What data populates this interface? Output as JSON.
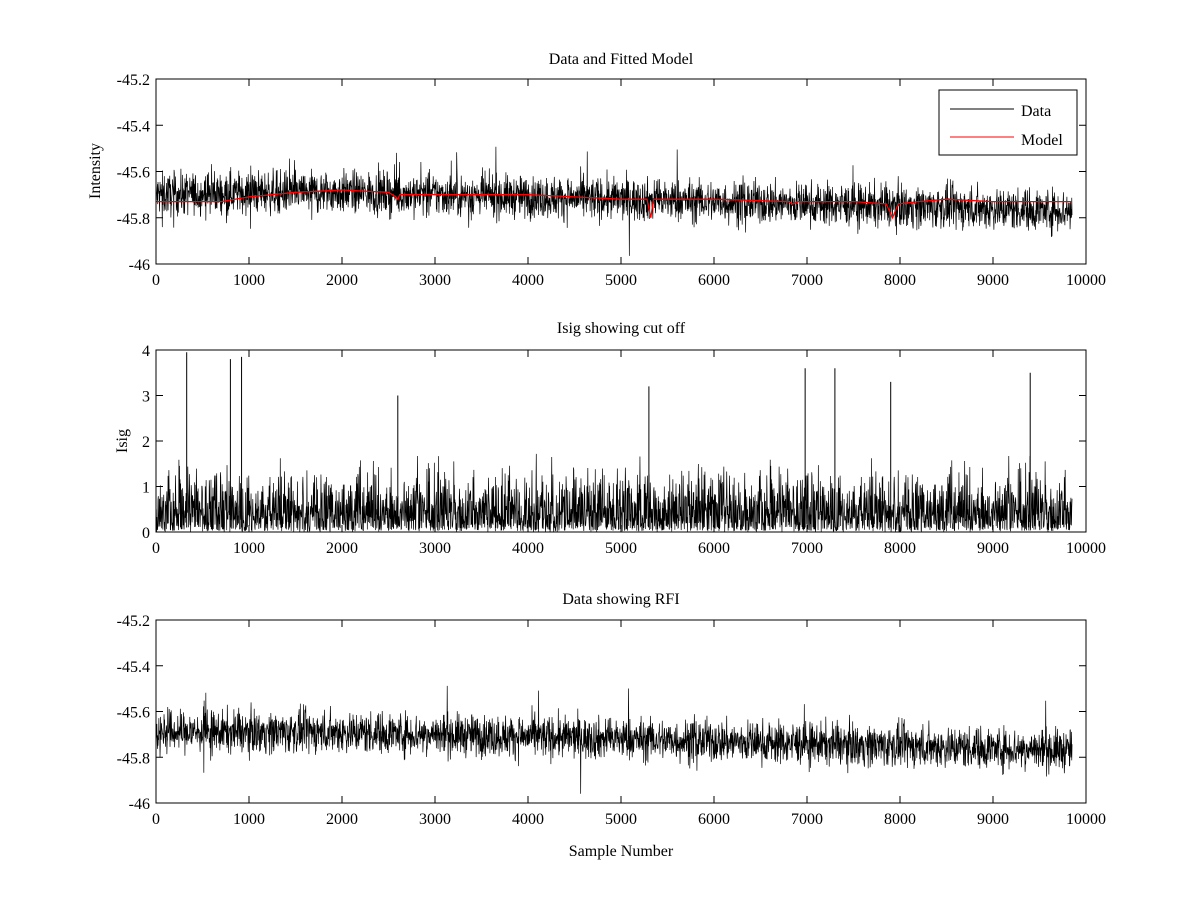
{
  "figure": {
    "background": "#ffffff"
  },
  "chart_data": [
    {
      "type": "line",
      "title": "Data and Fitted Model",
      "xlabel": "",
      "ylabel": "Intensity",
      "xlim": [
        0,
        10000
      ],
      "ylim": [
        -46,
        -45.2
      ],
      "xticks": [
        0,
        1000,
        2000,
        3000,
        4000,
        5000,
        6000,
        7000,
        8000,
        9000,
        10000
      ],
      "xtick_labels": [
        "0",
        "1000",
        "2000",
        "3000",
        "4000",
        "5000",
        "6000",
        "7000",
        "8000",
        "9000",
        "10000"
      ],
      "yticks": [
        -46,
        -45.8,
        -45.6,
        -45.4,
        -45.2
      ],
      "ytick_labels": [
        "-46",
        "-45.8",
        "-45.6",
        "-45.4",
        "-45.2"
      ],
      "legend": {
        "location": "top-right",
        "entries": [
          "Data",
          "Model"
        ]
      },
      "series": [
        {
          "name": "Data",
          "color": "#000000",
          "style": "dense-noise",
          "n_samples": 9850,
          "center": {
            "x": [
              0,
              1000,
              2000,
              3000,
              4000,
              5000,
              6000,
              7000,
              8000,
              9000,
              9850
            ],
            "y": [
              -45.7,
              -45.69,
              -45.69,
              -45.7,
              -45.71,
              -45.72,
              -45.73,
              -45.74,
              -45.75,
              -45.76,
              -45.77
            ]
          },
          "spread": 0.06
        },
        {
          "name": "Model",
          "color": "#ff0000",
          "style": "line",
          "x": [
            0,
            700,
            1000,
            1500,
            2000,
            2500,
            2580,
            2600,
            2620,
            3000,
            4000,
            4500,
            5000,
            5280,
            5320,
            5350,
            5400,
            6000,
            6800,
            6850,
            6900,
            7500,
            7850,
            7920,
            7980,
            8200,
            8500,
            9000,
            9850
          ],
          "y": [
            -45.73,
            -45.73,
            -45.71,
            -45.69,
            -45.68,
            -45.69,
            -45.71,
            -45.72,
            -45.7,
            -45.7,
            -45.7,
            -45.71,
            -45.72,
            -45.72,
            -45.8,
            -45.72,
            -45.72,
            -45.72,
            -45.73,
            -45.74,
            -45.73,
            -45.73,
            -45.74,
            -45.8,
            -45.74,
            -45.73,
            -45.72,
            -45.73,
            -45.73
          ]
        }
      ]
    },
    {
      "type": "line",
      "title": "Isig showing cut off",
      "xlabel": "",
      "ylabel": "Isig",
      "xlim": [
        0,
        10000
      ],
      "ylim": [
        0,
        4
      ],
      "xticks": [
        0,
        1000,
        2000,
        3000,
        4000,
        5000,
        6000,
        7000,
        8000,
        9000,
        10000
      ],
      "xtick_labels": [
        "0",
        "1000",
        "2000",
        "3000",
        "4000",
        "5000",
        "6000",
        "7000",
        "8000",
        "9000",
        "10000"
      ],
      "yticks": [
        0,
        1,
        2,
        3,
        4
      ],
      "ytick_labels": [
        "0",
        "1",
        "2",
        "3",
        "4"
      ],
      "series": [
        {
          "name": "Isig",
          "color": "#000000",
          "style": "dense-noise-positive",
          "n_samples": 9850,
          "typical_max": 2.2,
          "peaks": {
            "x": [
              330,
              800,
              920,
              2600,
              5300,
              6980,
              7300,
              7900,
              9400
            ],
            "y": [
              3.95,
              3.8,
              3.85,
              3.0,
              3.2,
              3.6,
              3.6,
              3.3,
              3.5
            ]
          }
        }
      ]
    },
    {
      "type": "line",
      "title": "Data showing RFI",
      "xlabel": "Sample Number",
      "ylabel": "",
      "xlim": [
        0,
        10000
      ],
      "ylim": [
        -46,
        -45.2
      ],
      "xticks": [
        0,
        1000,
        2000,
        3000,
        4000,
        5000,
        6000,
        7000,
        8000,
        9000,
        10000
      ],
      "xtick_labels": [
        "0",
        "1000",
        "2000",
        "3000",
        "4000",
        "5000",
        "6000",
        "7000",
        "8000",
        "9000",
        "10000"
      ],
      "yticks": [
        -46,
        -45.8,
        -45.6,
        -45.4,
        -45.2
      ],
      "ytick_labels": [
        "-46",
        "-45.8",
        "-45.6",
        "-45.4",
        "-45.2"
      ],
      "series": [
        {
          "name": "Data",
          "color": "#000000",
          "style": "dense-noise",
          "n_samples": 9850,
          "center": {
            "x": [
              0,
              1000,
              2000,
              3000,
              4000,
              5000,
              6000,
              7000,
              8000,
              9000,
              9850
            ],
            "y": [
              -45.69,
              -45.69,
              -45.69,
              -45.7,
              -45.71,
              -45.72,
              -45.73,
              -45.74,
              -45.75,
              -45.76,
              -45.77
            ]
          },
          "spread": 0.06
        }
      ]
    }
  ]
}
